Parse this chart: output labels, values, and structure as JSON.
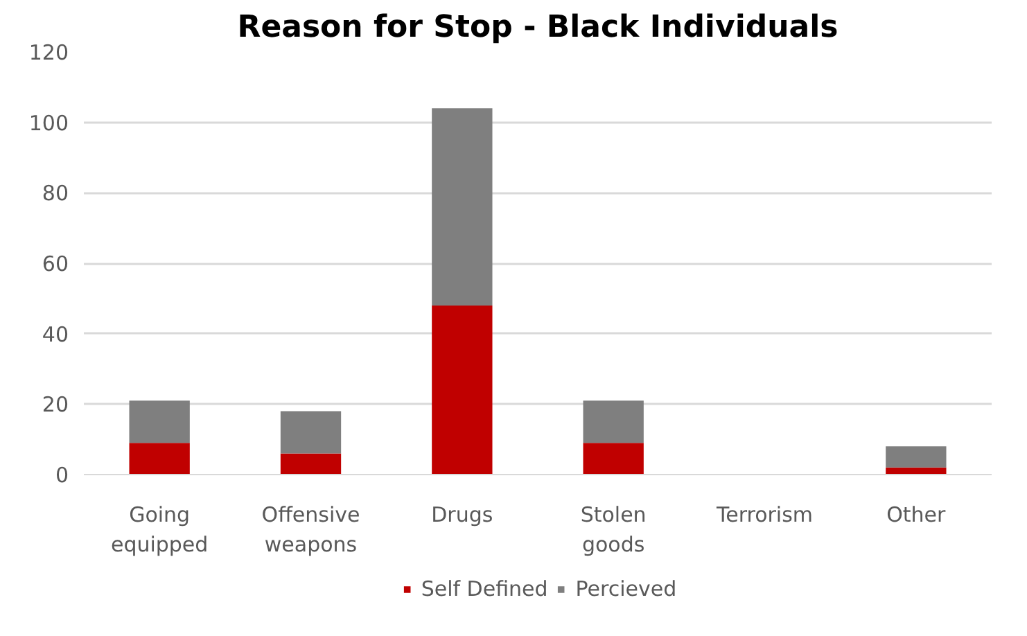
{
  "chart_data": {
    "type": "bar",
    "stacked": true,
    "title": "Reason for Stop - Black Individuals",
    "categories": [
      "Going equipped",
      "Offensive weapons",
      "Drugs",
      "Stolen goods",
      "Terrorism",
      "Other"
    ],
    "series": [
      {
        "name": "Self Defined",
        "color": "#c00000",
        "values": [
          9,
          6,
          48,
          9,
          0,
          2
        ]
      },
      {
        "name": "Percieved",
        "color": "#7f7f7f",
        "values": [
          12,
          12,
          56,
          12,
          0,
          6
        ]
      }
    ],
    "ylim": [
      0,
      120
    ],
    "yticks": [
      0,
      20,
      40,
      60,
      80,
      100,
      120
    ],
    "grid": "y",
    "legend": "bottom"
  }
}
